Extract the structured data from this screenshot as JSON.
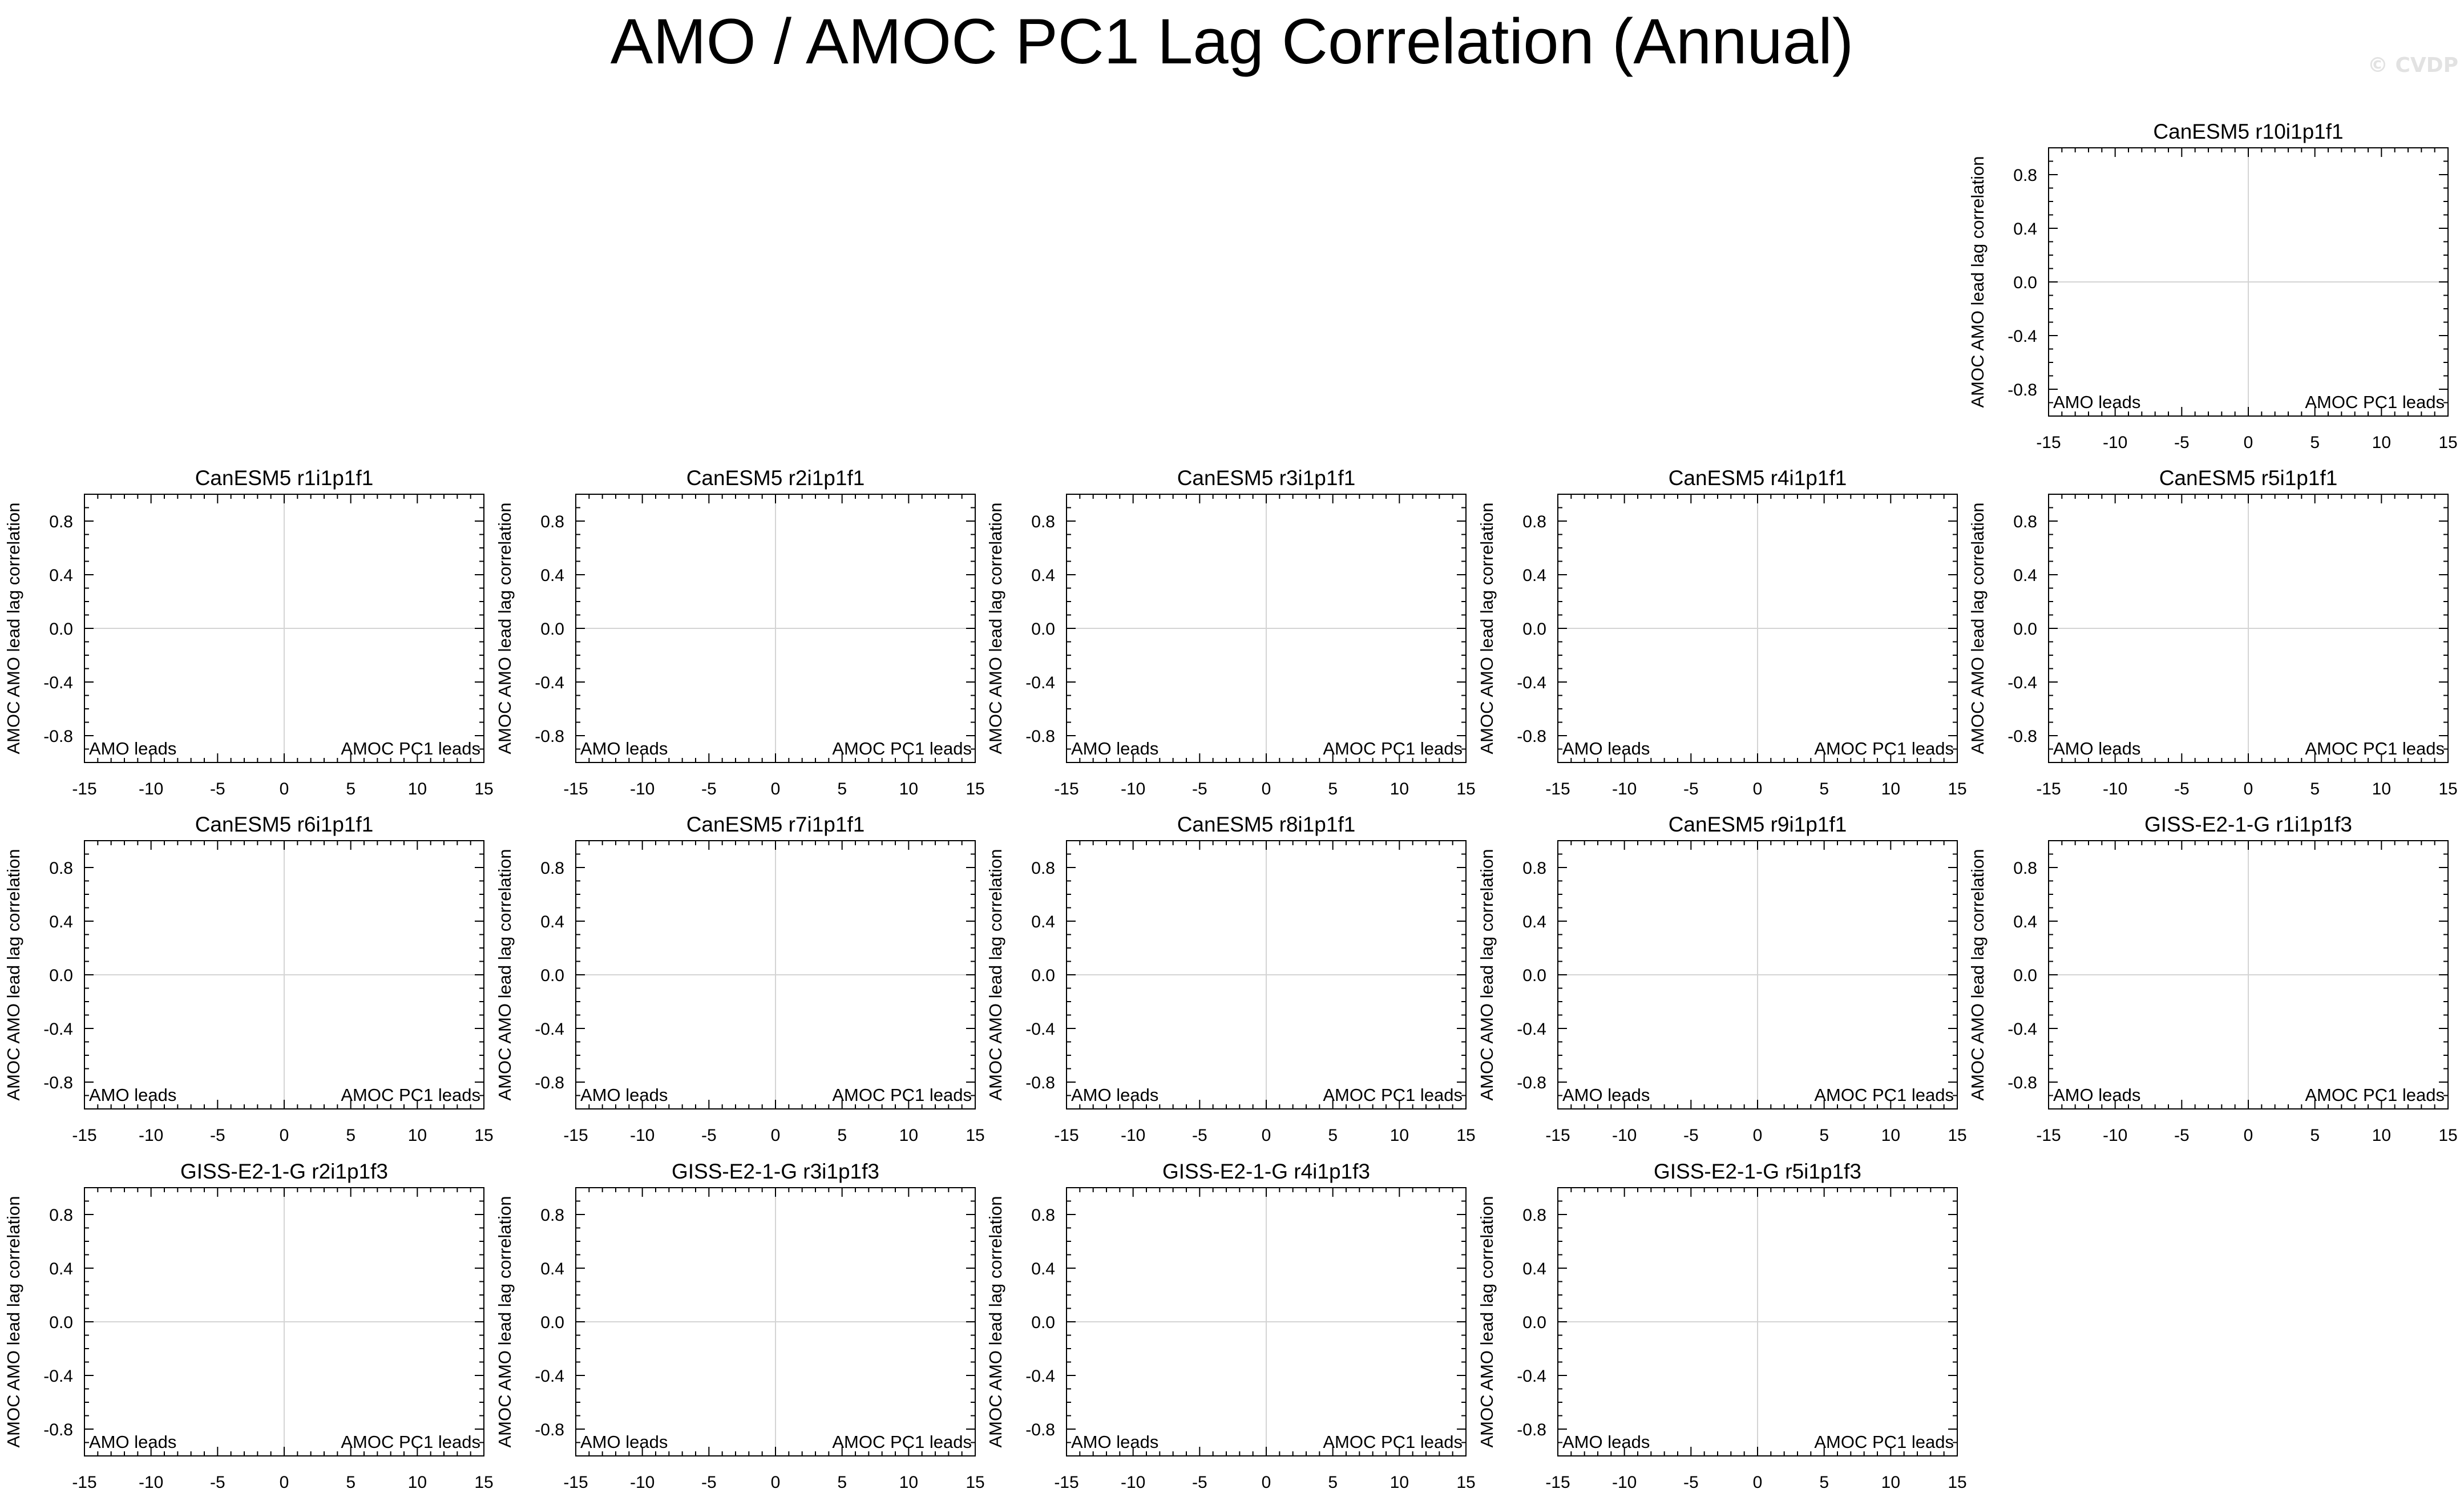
{
  "figure": {
    "title": "AMO / AMOC PC1 Lag Correlation (Annual)",
    "watermark": "© CVDP"
  },
  "chart_data": [
    {
      "type": "line",
      "title": "CanESM5 r10i1p1f1",
      "grid_row": 0,
      "grid_col": 4,
      "xlim": [
        -15,
        15
      ],
      "ylim": [
        -1,
        1
      ],
      "ylabel": "AMOC AMO lead lag correlation",
      "left_annotation": "AMO leads",
      "right_annotation": "AMOC PC1 leads",
      "x_ticks": [
        "-15",
        "-10",
        "-5",
        "0",
        "5",
        "10",
        "15"
      ],
      "y_ticks": [
        "0.8",
        "0.4",
        "0.0",
        "-0.4",
        "-0.8"
      ],
      "series": []
    },
    {
      "type": "line",
      "title": "CanESM5 r1i1p1f1",
      "grid_row": 1,
      "grid_col": 0,
      "xlim": [
        -15,
        15
      ],
      "ylim": [
        -1,
        1
      ],
      "ylabel": "AMOC AMO lead lag correlation",
      "left_annotation": "AMO leads",
      "right_annotation": "AMOC PC1 leads",
      "x_ticks": [
        "-15",
        "-10",
        "-5",
        "0",
        "5",
        "10",
        "15"
      ],
      "y_ticks": [
        "0.8",
        "0.4",
        "0.0",
        "-0.4",
        "-0.8"
      ],
      "series": []
    },
    {
      "type": "line",
      "title": "CanESM5 r2i1p1f1",
      "grid_row": 1,
      "grid_col": 1,
      "xlim": [
        -15,
        15
      ],
      "ylim": [
        -1,
        1
      ],
      "ylabel": "AMOC AMO lead lag correlation",
      "left_annotation": "AMO leads",
      "right_annotation": "AMOC PC1 leads",
      "x_ticks": [
        "-15",
        "-10",
        "-5",
        "0",
        "5",
        "10",
        "15"
      ],
      "y_ticks": [
        "0.8",
        "0.4",
        "0.0",
        "-0.4",
        "-0.8"
      ],
      "series": []
    },
    {
      "type": "line",
      "title": "CanESM5 r3i1p1f1",
      "grid_row": 1,
      "grid_col": 2,
      "xlim": [
        -15,
        15
      ],
      "ylim": [
        -1,
        1
      ],
      "ylabel": "AMOC AMO lead lag correlation",
      "left_annotation": "AMO leads",
      "right_annotation": "AMOC PC1 leads",
      "x_ticks": [
        "-15",
        "-10",
        "-5",
        "0",
        "5",
        "10",
        "15"
      ],
      "y_ticks": [
        "0.8",
        "0.4",
        "0.0",
        "-0.4",
        "-0.8"
      ],
      "series": []
    },
    {
      "type": "line",
      "title": "CanESM5 r4i1p1f1",
      "grid_row": 1,
      "grid_col": 3,
      "xlim": [
        -15,
        15
      ],
      "ylim": [
        -1,
        1
      ],
      "ylabel": "AMOC AMO lead lag correlation",
      "left_annotation": "AMO leads",
      "right_annotation": "AMOC PC1 leads",
      "x_ticks": [
        "-15",
        "-10",
        "-5",
        "0",
        "5",
        "10",
        "15"
      ],
      "y_ticks": [
        "0.8",
        "0.4",
        "0.0",
        "-0.4",
        "-0.8"
      ],
      "series": []
    },
    {
      "type": "line",
      "title": "CanESM5 r5i1p1f1",
      "grid_row": 1,
      "grid_col": 4,
      "xlim": [
        -15,
        15
      ],
      "ylim": [
        -1,
        1
      ],
      "ylabel": "AMOC AMO lead lag correlation",
      "left_annotation": "AMO leads",
      "right_annotation": "AMOC PC1 leads",
      "x_ticks": [
        "-15",
        "-10",
        "-5",
        "0",
        "5",
        "10",
        "15"
      ],
      "y_ticks": [
        "0.8",
        "0.4",
        "0.0",
        "-0.4",
        "-0.8"
      ],
      "series": []
    },
    {
      "type": "line",
      "title": "CanESM5 r6i1p1f1",
      "grid_row": 2,
      "grid_col": 0,
      "xlim": [
        -15,
        15
      ],
      "ylim": [
        -1,
        1
      ],
      "ylabel": "AMOC AMO lead lag correlation",
      "left_annotation": "AMO leads",
      "right_annotation": "AMOC PC1 leads",
      "x_ticks": [
        "-15",
        "-10",
        "-5",
        "0",
        "5",
        "10",
        "15"
      ],
      "y_ticks": [
        "0.8",
        "0.4",
        "0.0",
        "-0.4",
        "-0.8"
      ],
      "series": []
    },
    {
      "type": "line",
      "title": "CanESM5 r7i1p1f1",
      "grid_row": 2,
      "grid_col": 1,
      "xlim": [
        -15,
        15
      ],
      "ylim": [
        -1,
        1
      ],
      "ylabel": "AMOC AMO lead lag correlation",
      "left_annotation": "AMO leads",
      "right_annotation": "AMOC PC1 leads",
      "x_ticks": [
        "-15",
        "-10",
        "-5",
        "0",
        "5",
        "10",
        "15"
      ],
      "y_ticks": [
        "0.8",
        "0.4",
        "0.0",
        "-0.4",
        "-0.8"
      ],
      "series": []
    },
    {
      "type": "line",
      "title": "CanESM5 r8i1p1f1",
      "grid_row": 2,
      "grid_col": 2,
      "xlim": [
        -15,
        15
      ],
      "ylim": [
        -1,
        1
      ],
      "ylabel": "AMOC AMO lead lag correlation",
      "left_annotation": "AMO leads",
      "right_annotation": "AMOC PC1 leads",
      "x_ticks": [
        "-15",
        "-10",
        "-5",
        "0",
        "5",
        "10",
        "15"
      ],
      "y_ticks": [
        "0.8",
        "0.4",
        "0.0",
        "-0.4",
        "-0.8"
      ],
      "series": []
    },
    {
      "type": "line",
      "title": "CanESM5 r9i1p1f1",
      "grid_row": 2,
      "grid_col": 3,
      "xlim": [
        -15,
        15
      ],
      "ylim": [
        -1,
        1
      ],
      "ylabel": "AMOC AMO lead lag correlation",
      "left_annotation": "AMO leads",
      "right_annotation": "AMOC PC1 leads",
      "x_ticks": [
        "-15",
        "-10",
        "-5",
        "0",
        "5",
        "10",
        "15"
      ],
      "y_ticks": [
        "0.8",
        "0.4",
        "0.0",
        "-0.4",
        "-0.8"
      ],
      "series": []
    },
    {
      "type": "line",
      "title": "GISS-E2-1-G r1i1p1f3",
      "grid_row": 2,
      "grid_col": 4,
      "xlim": [
        -15,
        15
      ],
      "ylim": [
        -1,
        1
      ],
      "ylabel": "AMOC AMO lead lag correlation",
      "left_annotation": "AMO leads",
      "right_annotation": "AMOC PC1 leads",
      "x_ticks": [
        "-15",
        "-10",
        "-5",
        "0",
        "5",
        "10",
        "15"
      ],
      "y_ticks": [
        "0.8",
        "0.4",
        "0.0",
        "-0.4",
        "-0.8"
      ],
      "series": []
    },
    {
      "type": "line",
      "title": "GISS-E2-1-G r2i1p1f3",
      "grid_row": 3,
      "grid_col": 0,
      "xlim": [
        -15,
        15
      ],
      "ylim": [
        -1,
        1
      ],
      "ylabel": "AMOC AMO lead lag correlation",
      "left_annotation": "AMO leads",
      "right_annotation": "AMOC PC1 leads",
      "x_ticks": [
        "-15",
        "-10",
        "-5",
        "0",
        "5",
        "10",
        "15"
      ],
      "y_ticks": [
        "0.8",
        "0.4",
        "0.0",
        "-0.4",
        "-0.8"
      ],
      "series": []
    },
    {
      "type": "line",
      "title": "GISS-E2-1-G r3i1p1f3",
      "grid_row": 3,
      "grid_col": 1,
      "xlim": [
        -15,
        15
      ],
      "ylim": [
        -1,
        1
      ],
      "ylabel": "AMOC AMO lead lag correlation",
      "left_annotation": "AMO leads",
      "right_annotation": "AMOC PC1 leads",
      "x_ticks": [
        "-15",
        "-10",
        "-5",
        "0",
        "5",
        "10",
        "15"
      ],
      "y_ticks": [
        "0.8",
        "0.4",
        "0.0",
        "-0.4",
        "-0.8"
      ],
      "series": []
    },
    {
      "type": "line",
      "title": "GISS-E2-1-G r4i1p1f3",
      "grid_row": 3,
      "grid_col": 2,
      "xlim": [
        -15,
        15
      ],
      "ylim": [
        -1,
        1
      ],
      "ylabel": "AMOC AMO lead lag correlation",
      "left_annotation": "AMO leads",
      "right_annotation": "AMOC PC1 leads",
      "x_ticks": [
        "-15",
        "-10",
        "-5",
        "0",
        "5",
        "10",
        "15"
      ],
      "y_ticks": [
        "0.8",
        "0.4",
        "0.0",
        "-0.4",
        "-0.8"
      ],
      "series": []
    },
    {
      "type": "line",
      "title": "GISS-E2-1-G r5i1p1f3",
      "grid_row": 3,
      "grid_col": 3,
      "xlim": [
        -15,
        15
      ],
      "ylim": [
        -1,
        1
      ],
      "ylabel": "AMOC AMO lead lag correlation",
      "left_annotation": "AMO leads",
      "right_annotation": "AMOC PC1 leads",
      "x_ticks": [
        "-15",
        "-10",
        "-5",
        "0",
        "5",
        "10",
        "15"
      ],
      "y_ticks": [
        "0.8",
        "0.4",
        "0.0",
        "-0.4",
        "-0.8"
      ],
      "series": []
    }
  ]
}
